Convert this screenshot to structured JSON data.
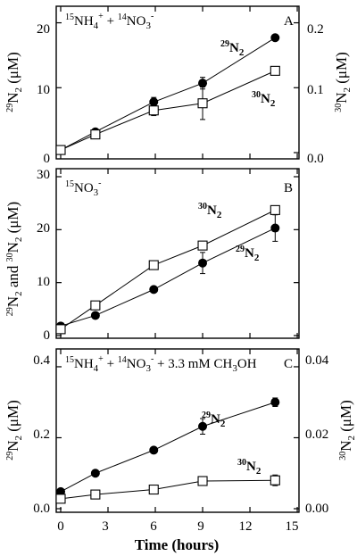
{
  "chart_data": [
    {
      "type": "line",
      "panel": "A",
      "annotation": {
        "lines": [
          "15NH4+ + 14NO3-"
        ]
      },
      "xlim": [
        0,
        15
      ],
      "ylim": [
        0,
        22
      ],
      "y2lim": [
        0,
        0.22
      ],
      "yticks": [
        0,
        10,
        20
      ],
      "y2ticks": [
        0.0,
        0.1,
        0.2
      ],
      "ylabel": "29N2 (μM)",
      "y2label": "30N2 (μM)",
      "series": [
        {
          "name": "29N2",
          "marker": "filled-circle",
          "axis": "left",
          "x": [
            0,
            2.2,
            5.9,
            9.0,
            13.6
          ],
          "y": [
            0.4,
            3.2,
            7.8,
            10.7,
            17.7
          ],
          "err": [
            0.2,
            0.4,
            0.7,
            0.9,
            0.4
          ]
        },
        {
          "name": "30N2",
          "marker": "open-square",
          "axis": "right",
          "x": [
            0,
            2.2,
            5.9,
            9.0,
            13.6
          ],
          "y": [
            0.004,
            0.028,
            0.065,
            0.076,
            0.126
          ],
          "err": [
            0.002,
            0.003,
            0.008,
            0.025,
            0.004
          ]
        }
      ]
    },
    {
      "type": "line",
      "panel": "B",
      "annotation": {
        "lines": [
          "15NO3-"
        ]
      },
      "xlim": [
        0,
        15
      ],
      "ylim": [
        0,
        30
      ],
      "yticks": [
        0,
        10,
        20,
        30
      ],
      "ylabel": "29N2 and 30N2 (μM)",
      "series": [
        {
          "name": "29N2",
          "marker": "filled-circle",
          "axis": "left",
          "x": [
            0,
            2.2,
            5.9,
            9.0,
            13.6
          ],
          "y": [
            1.8,
            3.8,
            8.7,
            13.7,
            20.3
          ],
          "err": [
            0.4,
            0.4,
            0.5,
            2.0,
            2.5
          ]
        },
        {
          "name": "30N2",
          "marker": "open-square",
          "axis": "left",
          "x": [
            0,
            2.2,
            5.9,
            9.0,
            13.6
          ],
          "y": [
            1.2,
            5.7,
            13.3,
            17.0,
            23.7
          ],
          "err": [
            0.3,
            0.5,
            0.4,
            0.6,
            0.7
          ]
        }
      ]
    },
    {
      "type": "line",
      "panel": "C",
      "annotation": {
        "lines": [
          "15NH4+ + 14NO3- + 3.3 mM CH3OH"
        ]
      },
      "xlim": [
        0,
        15
      ],
      "ylim": [
        0,
        0.42
      ],
      "y2lim": [
        0,
        0.042
      ],
      "yticks": [
        0.0,
        0.2,
        0.4
      ],
      "y2ticks": [
        0.0,
        0.02,
        0.04
      ],
      "ylabel": "29N2 (μM)",
      "y2label": "30N2 (μM)",
      "xlabel": "Time (hours)",
      "xticks": [
        0,
        3,
        6,
        9,
        12,
        15
      ],
      "series": [
        {
          "name": "29N2",
          "marker": "filled-circle",
          "axis": "left",
          "x": [
            0,
            2.2,
            5.9,
            9.0,
            13.6
          ],
          "y": [
            0.048,
            0.1,
            0.165,
            0.232,
            0.3
          ],
          "err": [
            0.004,
            0.005,
            0.005,
            0.022,
            0.012
          ]
        },
        {
          "name": "30N2",
          "marker": "open-square",
          "axis": "right",
          "x": [
            0,
            2.2,
            5.9,
            9.0,
            13.6
          ],
          "y": [
            0.0028,
            0.004,
            0.0054,
            0.0078,
            0.008
          ],
          "err": [
            0.0002,
            0.0003,
            0.0004,
            0.001,
            0.0015
          ]
        }
      ]
    }
  ],
  "labels": {
    "panelA": {
      "letter": "A",
      "anno1": "15",
      "anno2": "NH",
      "anno3": "4",
      "anno4": "+",
      "anno5": " + ",
      "anno6": "14",
      "anno7": "NO",
      "anno8": "3",
      "anno9": "-",
      "s29sup": "29",
      "s29main": "N",
      "s29sub": "2",
      "s30sup": "30",
      "s30main": "N",
      "s30sub": "2",
      "yl_sup": "29",
      "yl_main": "N",
      "yl_sub": "2",
      "yl_rest": " (μM)",
      "y2l_sup": "30",
      "y2l_main": "N",
      "y2l_sub": "2",
      "y2l_rest": " (μM)",
      "yt0": "0",
      "yt1": "10",
      "yt2": "20",
      "y2t0": "0.0",
      "y2t1": "0.1",
      "y2t2": "0.2"
    },
    "panelB": {
      "letter": "B",
      "anno1": "15",
      "anno2": "NO",
      "anno3": "3",
      "anno4": "-",
      "s30sup": "30",
      "s30main": "N",
      "s30sub": "2",
      "s29sup": "29",
      "s29main": "N",
      "s29sub": "2",
      "yl_sup1": "29",
      "yl_main1": "N",
      "yl_sub1": "2",
      "yl_and": " and ",
      "yl_sup2": "30",
      "yl_main2": "N",
      "yl_sub2": "2",
      "yl_rest": " (μM)",
      "yt0": "0",
      "yt1": "10",
      "yt2": "20",
      "yt3": "30"
    },
    "panelC": {
      "letter": "C",
      "anno1": "15",
      "anno2": "NH",
      "anno3": "4",
      "anno4": "+",
      "anno5": " + ",
      "anno6": "14",
      "anno7": "NO",
      "anno8": "3",
      "anno9": "-",
      "anno10": " + 3.3 mM CH",
      "anno11": "3",
      "anno12": "OH",
      "s29sup": "29",
      "s29main": "N",
      "s29sub": "2",
      "s30sup": "30",
      "s30main": "N",
      "s30sub": "2",
      "yl_sup": "29",
      "yl_main": "N",
      "yl_sub": "2",
      "yl_rest": " (μM)",
      "y2l_sup": "30",
      "y2l_main": "N",
      "y2l_sub": "2",
      "y2l_rest": " (μM)",
      "yt0": "0.0",
      "yt1": "0.2",
      "yt2": "0.4",
      "y2t0": "0.00",
      "y2t1": "0.02",
      "y2t2": "0.04",
      "xt0": "0",
      "xt1": "3",
      "xt2": "6",
      "xt3": "9",
      "xt4": "12",
      "xt5": "15",
      "xlabel": "Time (hours)"
    }
  }
}
